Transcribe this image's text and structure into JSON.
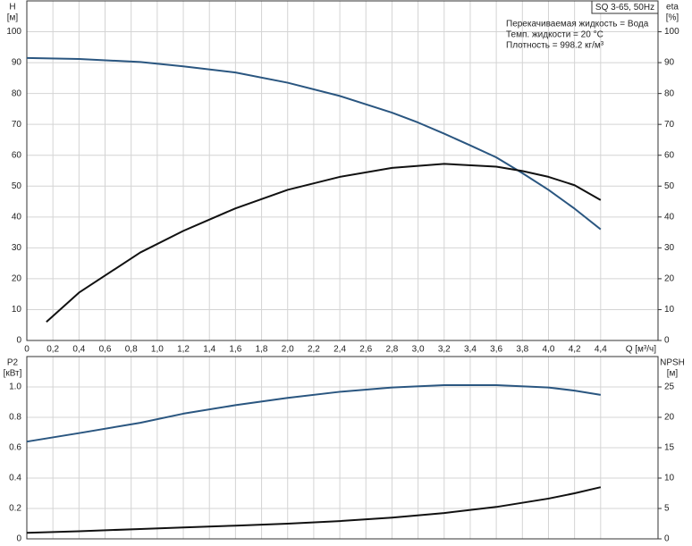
{
  "chart_data": [
    {
      "type": "line",
      "y_label": "H",
      "y_unit": "[м]",
      "y2_label": "eta",
      "y2_unit": "[%]",
      "x_label": "Q [м³/ч]",
      "pump": "SQ 3-65, 50Hz",
      "notes": [
        "Перекачиваемая жидкость = Вода",
        "Темп. жидкости = 20 °C",
        "Плотность = 998.2 кг/м³"
      ],
      "grid": true,
      "xlim": [
        0,
        4.84
      ],
      "xticks": [
        0,
        {
          "value": 0.2,
          "label": "0,2"
        },
        {
          "value": 0.4,
          "label": "0,4"
        },
        {
          "value": 0.6,
          "label": "0,6"
        },
        {
          "value": 0.8,
          "label": "0,8"
        },
        {
          "value": 1.0,
          "label": "1,0"
        },
        {
          "value": 1.2,
          "label": "1,2"
        },
        {
          "value": 1.4,
          "label": "1,4"
        },
        {
          "value": 1.6,
          "label": "1,6"
        },
        {
          "value": 1.8,
          "label": "1,8"
        },
        {
          "value": 2.0,
          "label": "2,0"
        },
        {
          "value": 2.2,
          "label": "2,2"
        },
        {
          "value": 2.4,
          "label": "2,4"
        },
        {
          "value": 2.6,
          "label": "2,6"
        },
        {
          "value": 2.8,
          "label": "2,8"
        },
        {
          "value": 3.0,
          "label": "3,0"
        },
        {
          "value": 3.2,
          "label": "3,2"
        },
        {
          "value": 3.4,
          "label": "3,4"
        },
        {
          "value": 3.6,
          "label": "3,6"
        },
        {
          "value": 3.8,
          "label": "3,8"
        },
        {
          "value": 4.0,
          "label": "4,0"
        },
        {
          "value": 4.2,
          "label": "4,2"
        },
        {
          "value": 4.4,
          "label": "4,4"
        }
      ],
      "ylim": [
        0,
        110
      ],
      "yticks": [
        0,
        10,
        20,
        30,
        40,
        50,
        60,
        70,
        80,
        90,
        100
      ],
      "y2lim": [
        0,
        110
      ],
      "y2ticks": [
        0,
        10,
        20,
        30,
        40,
        50,
        60,
        70,
        80,
        90,
        100
      ],
      "series": [
        {
          "color": "#2a5680",
          "axis": "y",
          "x": [
            0,
            0.4,
            0.87,
            1.2,
            1.6,
            2.0,
            2.4,
            2.8,
            3.0,
            3.2,
            3.4,
            3.6,
            3.8,
            4.0,
            4.2,
            4.4
          ],
          "values": [
            91.5,
            91.2,
            90.2,
            88.8,
            86.8,
            83.5,
            79.2,
            73.8,
            70.6,
            67.0,
            63.2,
            59.3,
            54.2,
            48.8,
            42.7,
            36.0
          ]
        },
        {
          "color": "#111111",
          "axis": "y2",
          "x": [
            0.15,
            0.4,
            0.87,
            1.2,
            1.6,
            2.0,
            2.4,
            2.8,
            3.2,
            3.6,
            3.8,
            4.0,
            4.2,
            4.4
          ],
          "values": [
            6.0,
            15.5,
            28.5,
            35.5,
            42.8,
            48.8,
            53.0,
            55.9,
            57.2,
            56.3,
            54.9,
            53.0,
            50.3,
            45.5
          ]
        }
      ]
    },
    {
      "type": "line",
      "y_label": "P2",
      "y_unit": "[кВт]",
      "y2_label": "NPSH",
      "y2_unit": "[м]",
      "grid": true,
      "xlim": [
        0,
        4.84
      ],
      "xticks": [
        0,
        0.2,
        0.4,
        0.6,
        0.8,
        1.0,
        1.2,
        1.4,
        1.6,
        1.8,
        2.0,
        2.2,
        2.4,
        2.6,
        2.8,
        3.0,
        3.2,
        3.4,
        3.6,
        3.8,
        4.0,
        4.2,
        4.4
      ],
      "ylim": [
        0,
        1.2
      ],
      "yticks": [
        0,
        0.2,
        0.4,
        0.6,
        0.8,
        {
          "value": 1.0,
          "label": "1.0"
        }
      ],
      "y2lim": [
        0,
        30
      ],
      "y2ticks": [
        0,
        5,
        10,
        15,
        20,
        25
      ],
      "series": [
        {
          "color": "#2a5680",
          "axis": "y2",
          "x": [
            0,
            0.4,
            0.87,
            1.2,
            1.6,
            2.0,
            2.4,
            2.8,
            3.2,
            3.6,
            4.0,
            4.2,
            4.4
          ],
          "values": [
            16.0,
            17.4,
            19.1,
            20.6,
            22.0,
            23.2,
            24.2,
            24.9,
            25.3,
            25.3,
            24.9,
            24.4,
            23.7
          ]
        },
        {
          "color": "#111111",
          "axis": "y",
          "x": [
            0,
            0.4,
            0.87,
            1.2,
            1.6,
            2.0,
            2.4,
            2.8,
            3.2,
            3.6,
            4.0,
            4.2,
            4.4
          ],
          "values": [
            0.04,
            0.05,
            0.065,
            0.075,
            0.087,
            0.1,
            0.117,
            0.14,
            0.17,
            0.21,
            0.265,
            0.3,
            0.34
          ]
        }
      ]
    }
  ]
}
